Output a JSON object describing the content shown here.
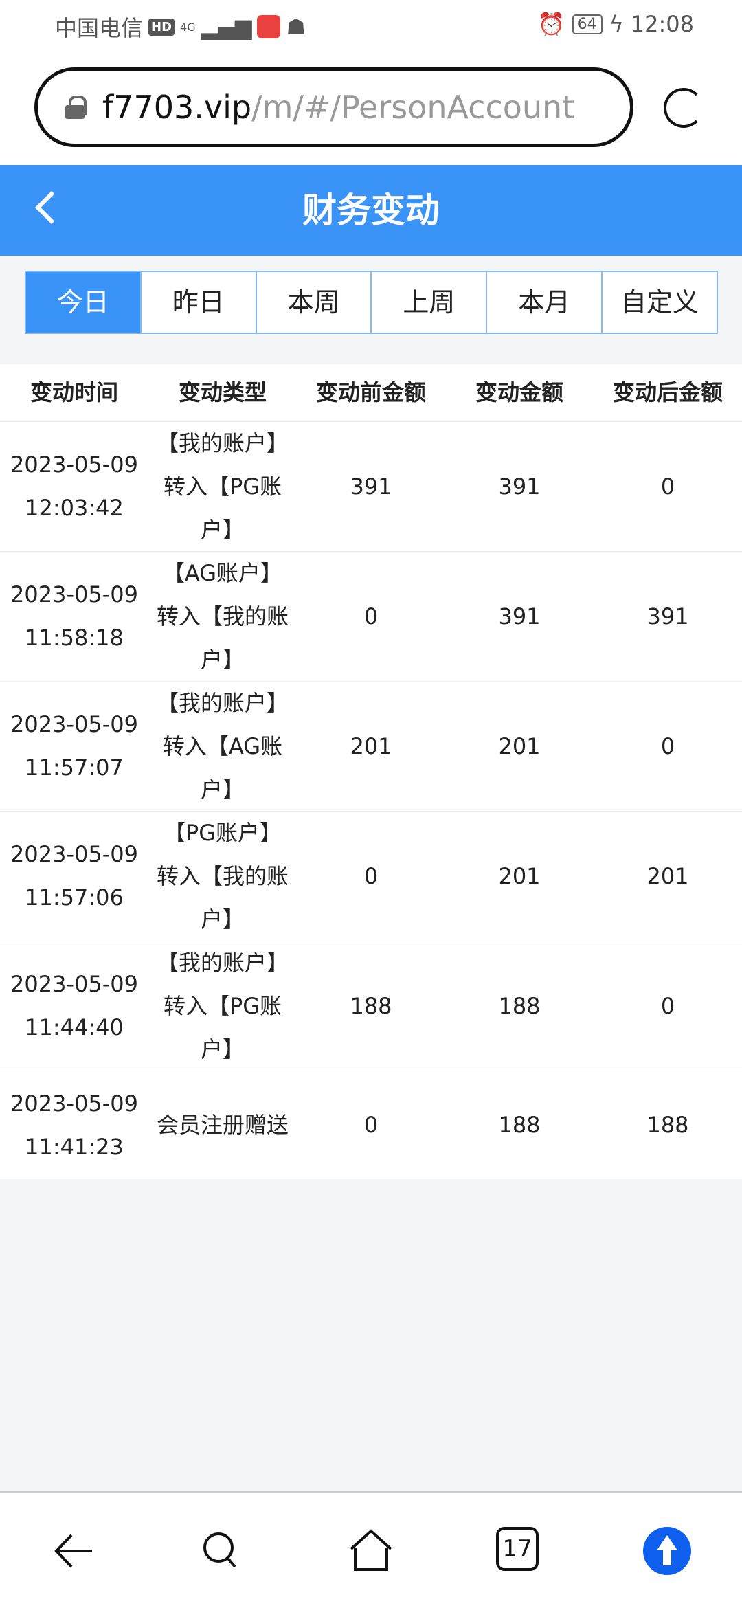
{
  "status": {
    "carrier": "中国电信",
    "network": "4G",
    "hd": "HD",
    "battery": "64",
    "time": "12:08"
  },
  "browser": {
    "url_domain": "f7703.vip",
    "url_path": "/m/#/PersonAccount",
    "tab_count": "17"
  },
  "header": {
    "title": "财务变动"
  },
  "tabs": [
    {
      "label": "今日",
      "active": true
    },
    {
      "label": "昨日"
    },
    {
      "label": "本周"
    },
    {
      "label": "上周"
    },
    {
      "label": "本月"
    },
    {
      "label": "自定义"
    }
  ],
  "table": {
    "columns": [
      "变动时间",
      "变动类型",
      "变动前金额",
      "变动金额",
      "变动后金额"
    ],
    "rows": [
      {
        "date": "2023-05-09",
        "time": "12:03:42",
        "type": "【我的账户】转入【PG账户】",
        "before": "391",
        "amount": "391",
        "after": "0"
      },
      {
        "date": "2023-05-09",
        "time": "11:58:18",
        "type": "【AG账户】转入【我的账户】",
        "before": "0",
        "amount": "391",
        "after": "391"
      },
      {
        "date": "2023-05-09",
        "time": "11:57:07",
        "type": "【我的账户】转入【AG账户】",
        "before": "201",
        "amount": "201",
        "after": "0"
      },
      {
        "date": "2023-05-09",
        "time": "11:57:06",
        "type": "【PG账户】转入【我的账户】",
        "before": "0",
        "amount": "201",
        "after": "201"
      },
      {
        "date": "2023-05-09",
        "time": "11:44:40",
        "type": "【我的账户】转入【PG账户】",
        "before": "188",
        "amount": "188",
        "after": "0"
      },
      {
        "date": "2023-05-09",
        "time": "11:41:23",
        "type": "会员注册赠送",
        "before": "0",
        "amount": "188",
        "after": "188"
      }
    ]
  },
  "colors": {
    "accent": "#3a93f7",
    "nav_upload": "#1060f0"
  }
}
